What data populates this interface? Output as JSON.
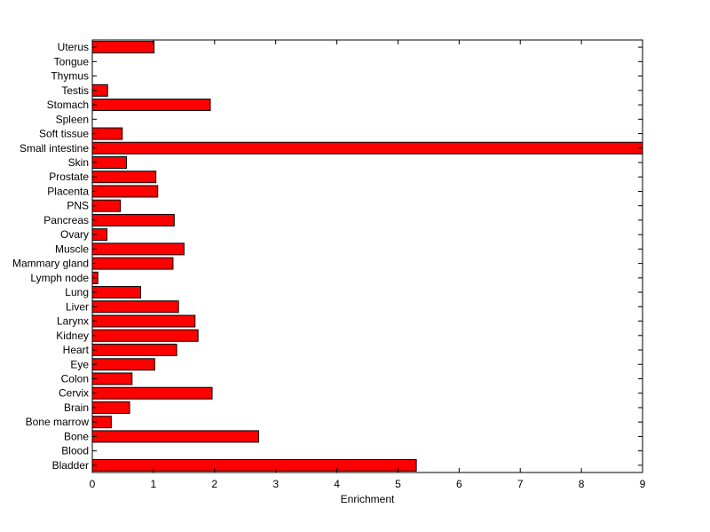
{
  "chart_data": {
    "type": "bar",
    "orientation": "horizontal",
    "title": "",
    "xlabel": "Enrichment",
    "ylabel": "",
    "xlim": [
      0,
      9
    ],
    "xticks": [
      0,
      1,
      2,
      3,
      4,
      5,
      6,
      7,
      8,
      9
    ],
    "grid": false,
    "legend": "none",
    "bar_color": "#ff0000",
    "edge_color": "#000000",
    "categories": [
      "Bladder",
      "Blood",
      "Bone",
      "Bone marrow",
      "Brain",
      "Cervix",
      "Colon",
      "Eye",
      "Heart",
      "Kidney",
      "Larynx",
      "Liver",
      "Lung",
      "Lymph node",
      "Mammary gland",
      "Muscle",
      "Ovary",
      "Pancreas",
      "PNS",
      "Placenta",
      "Prostate",
      "Skin",
      "Small intestine",
      "Soft tissue",
      "Spleen",
      "Stomach",
      "Testis",
      "Thymus",
      "Tongue",
      "Uterus"
    ],
    "values": [
      5.3,
      0,
      2.72,
      0.31,
      0.61,
      1.96,
      0.65,
      1.02,
      1.38,
      1.73,
      1.68,
      1.41,
      0.79,
      0.09,
      1.32,
      1.5,
      0.24,
      1.34,
      0.46,
      1.07,
      1.04,
      0.56,
      9.0,
      0.49,
      0,
      1.93,
      0.25,
      0,
      0,
      1.01
    ]
  }
}
